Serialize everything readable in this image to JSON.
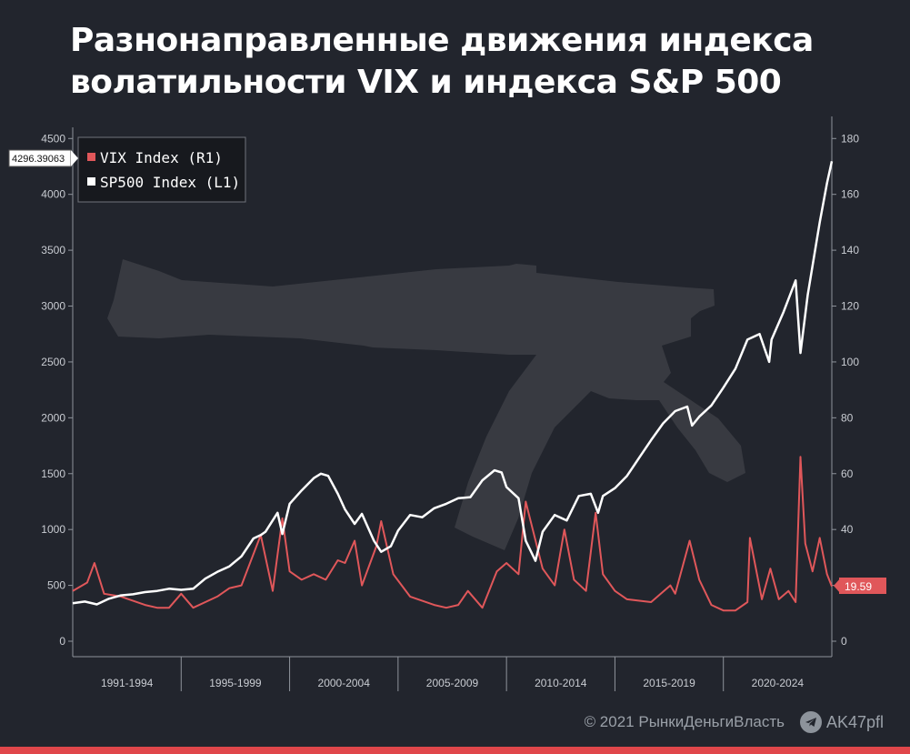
{
  "header": {
    "title_line1": "Разнонаправленные движения индекса",
    "title_line2": "волатильности VIX и индекса S&P 500"
  },
  "footer": {
    "credit": "© 2021  РынкиДеньгиВласть",
    "channel": "AK47pfl",
    "channel_icon": "telegram-icon"
  },
  "colors": {
    "background": "#22252d",
    "vix": "#e0575a",
    "sp500": "#ffffff",
    "axis": "#8f949c",
    "bottom_bar": "#e0464a"
  },
  "chart_data": {
    "type": "line",
    "legend": {
      "placement": "top-left",
      "entries": [
        "VIX Index (R1)",
        "SP500 Index (L1)"
      ]
    },
    "x_range": [
      1990.0,
      2021.5
    ],
    "x_periods": [
      "1991-1994",
      "1995-1999",
      "2000-2004",
      "2005-2009",
      "2010-2014",
      "2015-2019",
      "2020-2024"
    ],
    "y_left": {
      "range": [
        0,
        4600
      ],
      "ticks": [
        0,
        500,
        1000,
        1500,
        2000,
        2500,
        3000,
        3500,
        4000,
        4500
      ],
      "last_value_label": "4296.39063"
    },
    "y_right": {
      "range": [
        0,
        184
      ],
      "ticks": [
        0,
        20,
        40,
        60,
        80,
        100,
        120,
        140,
        160,
        180
      ],
      "last_value_label": "19.59"
    },
    "grid": false,
    "series": [
      {
        "name": "SP500 Index (L1)",
        "axis": "left",
        "color": "#ffffff",
        "x": [
          1990.0,
          1990.5,
          1991.0,
          1991.5,
          1992.0,
          1992.5,
          1993.0,
          1993.5,
          1994.0,
          1994.5,
          1995.0,
          1995.5,
          1996.0,
          1996.5,
          1997.0,
          1997.5,
          1997.8,
          1998.0,
          1998.5,
          1998.7,
          1999.0,
          1999.5,
          2000.0,
          2000.3,
          2000.6,
          2001.0,
          2001.3,
          2001.7,
          2002.0,
          2002.5,
          2002.8,
          2003.2,
          2003.5,
          2004.0,
          2004.5,
          2005.0,
          2005.5,
          2006.0,
          2006.5,
          2007.0,
          2007.5,
          2007.8,
          2008.0,
          2008.5,
          2008.8,
          2009.2,
          2009.5,
          2010.0,
          2010.5,
          2011.0,
          2011.5,
          2011.8,
          2012.0,
          2012.5,
          2013.0,
          2013.5,
          2014.0,
          2014.5,
          2015.0,
          2015.5,
          2015.7,
          2016.0,
          2016.5,
          2017.0,
          2017.5,
          2018.0,
          2018.5,
          2018.9,
          2019.0,
          2019.5,
          2020.0,
          2020.2,
          2020.5,
          2021.0,
          2021.3,
          2021.5
        ],
        "y": [
          340,
          355,
          330,
          380,
          410,
          420,
          440,
          450,
          470,
          460,
          470,
          560,
          620,
          670,
          760,
          920,
          950,
          980,
          1150,
          960,
          1230,
          1350,
          1460,
          1500,
          1480,
          1320,
          1180,
          1050,
          1140,
          900,
          800,
          850,
          990,
          1130,
          1110,
          1190,
          1230,
          1280,
          1290,
          1440,
          1530,
          1510,
          1380,
          1280,
          900,
          720,
          980,
          1130,
          1080,
          1300,
          1320,
          1150,
          1300,
          1370,
          1480,
          1640,
          1800,
          1950,
          2060,
          2100,
          1930,
          2010,
          2110,
          2270,
          2440,
          2700,
          2750,
          2500,
          2700,
          2950,
          3230,
          2580,
          3100,
          3750,
          4100,
          4296
        ]
      },
      {
        "name": "VIX Index (R1)",
        "axis": "right",
        "color": "#e0575a",
        "x": [
          1990.0,
          1990.6,
          1990.9,
          1991.3,
          1992.0,
          1993.0,
          1993.5,
          1994.0,
          1994.5,
          1995.0,
          1996.0,
          1996.5,
          1997.0,
          1997.8,
          1998.3,
          1998.7,
          1999.0,
          1999.5,
          2000.0,
          2000.5,
          2001.0,
          2001.3,
          2001.7,
          2002.0,
          2002.6,
          2002.8,
          2003.3,
          2004.0,
          2005.0,
          2005.5,
          2006.0,
          2006.4,
          2007.0,
          2007.6,
          2008.0,
          2008.5,
          2008.8,
          2009.0,
          2009.5,
          2010.0,
          2010.4,
          2010.8,
          2011.3,
          2011.7,
          2012.0,
          2012.5,
          2013.0,
          2014.0,
          2014.8,
          2015.0,
          2015.6,
          2016.0,
          2016.5,
          2017.0,
          2017.5,
          2018.0,
          2018.1,
          2018.6,
          2018.95,
          2019.3,
          2019.7,
          2020.0,
          2020.2,
          2020.4,
          2020.7,
          2021.0,
          2021.3,
          2021.5
        ],
        "y": [
          18,
          21,
          28,
          17,
          16,
          13,
          12,
          12,
          17,
          12,
          16,
          19,
          20,
          38,
          18,
          44,
          25,
          22,
          24,
          22,
          29,
          28,
          36,
          20,
          34,
          43,
          24,
          16,
          13,
          12,
          13,
          18,
          12,
          25,
          28,
          24,
          50,
          43,
          26,
          20,
          40,
          22,
          18,
          46,
          24,
          18,
          15,
          14,
          20,
          17,
          36,
          22,
          13,
          11,
          11,
          14,
          37,
          15,
          26,
          15,
          18,
          14,
          66,
          35,
          25,
          37,
          24,
          19.59
        ]
      }
    ]
  }
}
